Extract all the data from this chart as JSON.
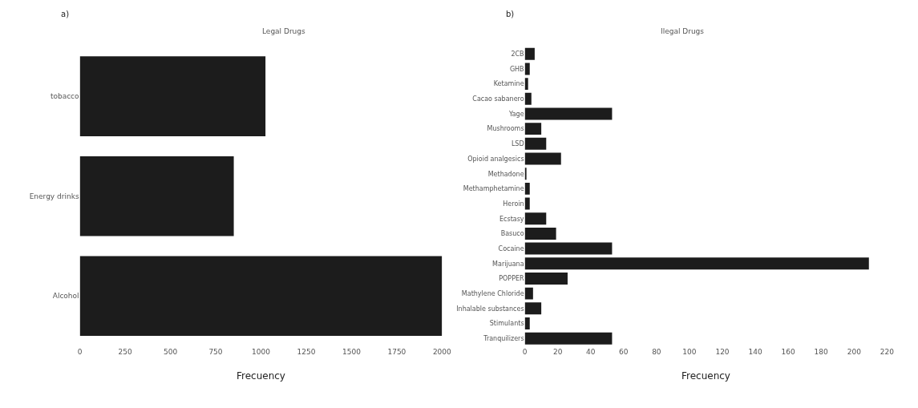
{
  "chart_data": [
    {
      "type": "bar",
      "orientation": "horizontal",
      "title": "Legal Drugs",
      "xlabel": "Frecuency",
      "annotations": [
        "a)"
      ],
      "categories": [
        "tobacco",
        "Energy drinks",
        "Alcohol"
      ],
      "values": [
        1025,
        850,
        2000
      ],
      "color": "#1c1c1c",
      "xlim": [
        0,
        2000
      ],
      "xticks": [
        0,
        250,
        500,
        750,
        1000,
        1250,
        1500,
        1750,
        2000
      ]
    },
    {
      "type": "bar",
      "orientation": "horizontal",
      "title": "Ilegal Drugs",
      "xlabel": "Frecuency",
      "annotations": [
        "b)"
      ],
      "categories": [
        "2CB",
        "GHB",
        "Ketamine",
        "Cacao sabanero",
        "Yage",
        "Mushrooms",
        "LSD",
        "Opioid analgesics",
        "Methadone",
        "Methamphetamine",
        "Heroin",
        "Ecstasy",
        "Basuco",
        "Cocaine",
        "Marijuana",
        "POPPER",
        "Mathylene Chloride",
        "Inhalable substances",
        "Stimulants",
        "Tranquilizers"
      ],
      "values": [
        6,
        3,
        2,
        4,
        53,
        10,
        13,
        22,
        1,
        3,
        3,
        13,
        19,
        53,
        209,
        26,
        5,
        10,
        3,
        53
      ],
      "color": "#1c1c1c",
      "xlim": [
        0,
        220
      ],
      "xticks": [
        0,
        20,
        40,
        60,
        80,
        100,
        120,
        140,
        160,
        180,
        200,
        220
      ]
    }
  ]
}
